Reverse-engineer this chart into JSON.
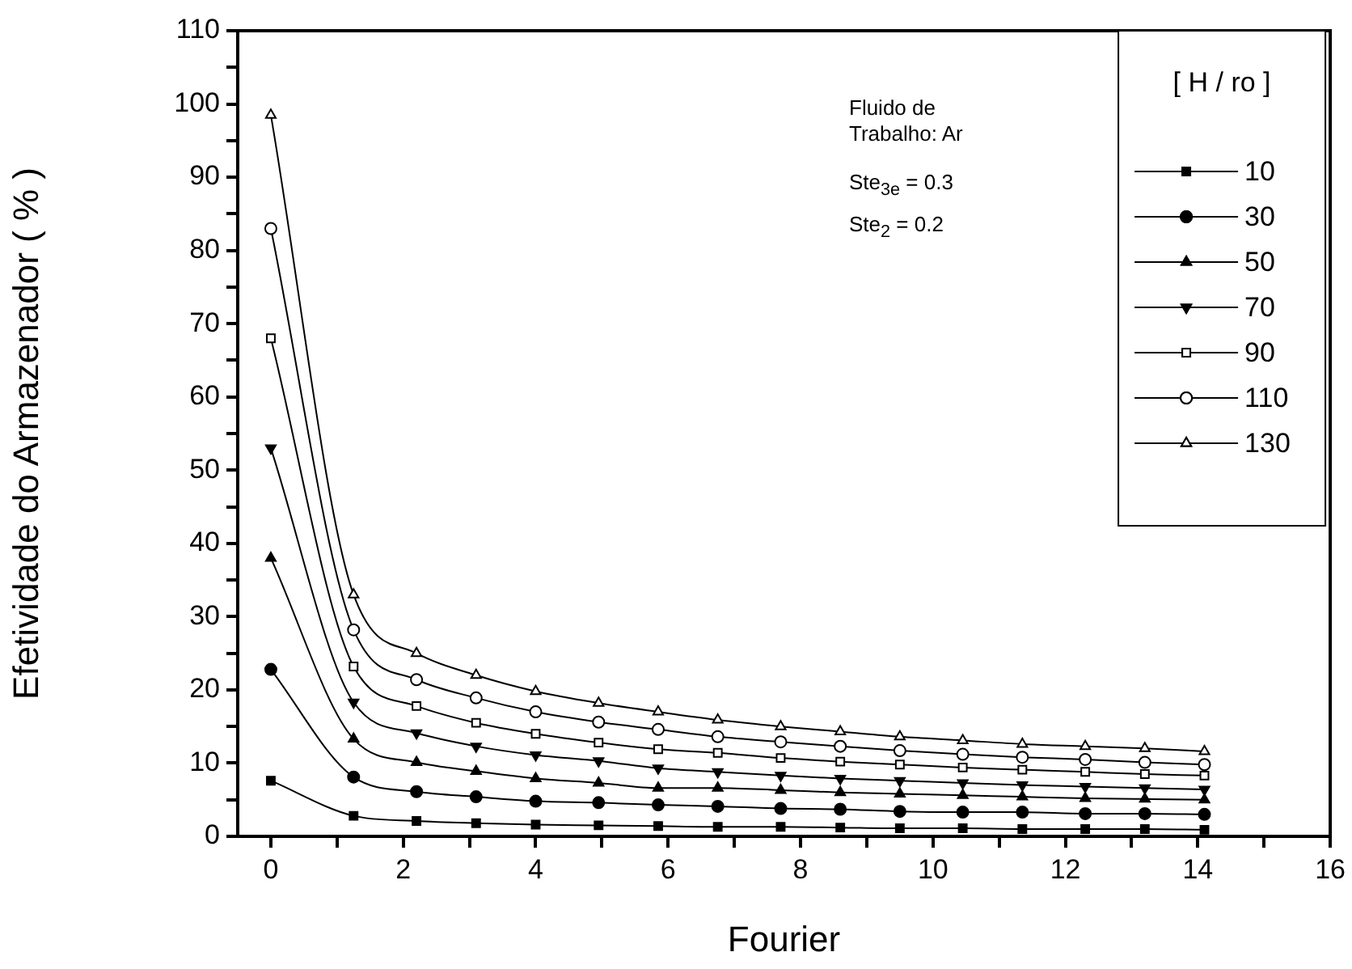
{
  "chart_data": {
    "type": "line",
    "xlabel": "Fourier",
    "ylabel": "Efetividade do Armazenador ( % )",
    "legend_title": "[ H / ro ]",
    "legend": "top right",
    "grid": false,
    "line_style": "solid",
    "annotations": [
      "Fluido de Trabalho: Ar",
      "Ste$_{3e}$ = 0.3",
      "Ste$_{2}$ = 0.2"
    ],
    "x": [
      0,
      1.25,
      2.2,
      3.1,
      4.0,
      4.95,
      5.85,
      6.75,
      7.7,
      8.6,
      9.5,
      10.45,
      11.35,
      12.3,
      13.2,
      14.1
    ],
    "xlim": [
      -0.5,
      16
    ],
    "xticks": [
      0,
      {
        "value": 1,
        "label": null
      },
      2,
      {
        "value": 3,
        "label": null
      },
      4,
      {
        "value": 5,
        "label": null
      },
      6,
      {
        "value": 7,
        "label": null
      },
      8,
      {
        "value": 9,
        "label": null
      },
      10,
      {
        "value": 11,
        "label": null
      },
      12,
      {
        "value": 13,
        "label": null
      },
      14,
      {
        "value": 15,
        "label": null
      },
      16
    ],
    "ylim": [
      0,
      110
    ],
    "yticks": [
      0,
      {
        "value": 5,
        "label": null
      },
      10,
      {
        "value": 15,
        "label": null
      },
      20,
      {
        "value": 25,
        "label": null
      },
      30,
      {
        "value": 35,
        "label": null
      },
      40,
      {
        "value": 45,
        "label": null
      },
      50,
      {
        "value": 55,
        "label": null
      },
      60,
      {
        "value": 65,
        "label": null
      },
      70,
      {
        "value": 75,
        "label": null
      },
      80,
      {
        "value": 85,
        "label": null
      },
      90,
      {
        "value": 95,
        "label": null
      },
      100,
      {
        "value": 105,
        "label": null
      },
      110
    ],
    "series": [
      {
        "name": "10",
        "color": "#000000",
        "marker": "square",
        "values": [
          7.6,
          2.8,
          2.1,
          1.8,
          1.6,
          1.5,
          1.4,
          1.3,
          1.3,
          1.2,
          1.1,
          1.1,
          1.0,
          1.0,
          1.0,
          0.9
        ]
      },
      {
        "name": "30",
        "color": "#000000",
        "marker": "circle",
        "values": [
          22.8,
          8.1,
          6.1,
          5.4,
          4.8,
          4.6,
          4.3,
          4.1,
          3.8,
          3.7,
          3.4,
          3.3,
          3.3,
          3.1,
          3.1,
          3.0
        ]
      },
      {
        "name": "50",
        "color": "#000000",
        "marker": "triangle",
        "values": [
          38,
          13.3,
          10.1,
          8.9,
          7.9,
          7.3,
          6.6,
          6.6,
          6.3,
          6.0,
          5.8,
          5.6,
          5.4,
          5.2,
          5.1,
          5.0
        ]
      },
      {
        "name": "70",
        "color": "#000000",
        "marker": "triangle-down",
        "values": [
          53,
          18.3,
          14.1,
          12.3,
          11.1,
          10.3,
          9.3,
          8.8,
          8.3,
          7.9,
          7.6,
          7.3,
          7.0,
          6.8,
          6.6,
          6.4
        ]
      },
      {
        "name": "90",
        "color": "#000000",
        "marker": "square-open",
        "values": [
          68,
          23.2,
          17.8,
          15.5,
          14.0,
          12.8,
          11.9,
          11.4,
          10.7,
          10.2,
          9.8,
          9.4,
          9.1,
          8.8,
          8.5,
          8.3
        ]
      },
      {
        "name": "110",
        "color": "#000000",
        "marker": "circle-open",
        "values": [
          83,
          28.2,
          21.4,
          18.9,
          17.0,
          15.6,
          14.6,
          13.6,
          12.9,
          12.3,
          11.7,
          11.2,
          10.8,
          10.5,
          10.1,
          9.8
        ]
      },
      {
        "name": "130",
        "color": "#000000",
        "marker": "triangle-open",
        "values": [
          98.5,
          33,
          25,
          22,
          19.8,
          18.2,
          17.0,
          15.9,
          15.0,
          14.3,
          13.6,
          13.1,
          12.6,
          12.3,
          12.0,
          11.6
        ]
      }
    ]
  }
}
